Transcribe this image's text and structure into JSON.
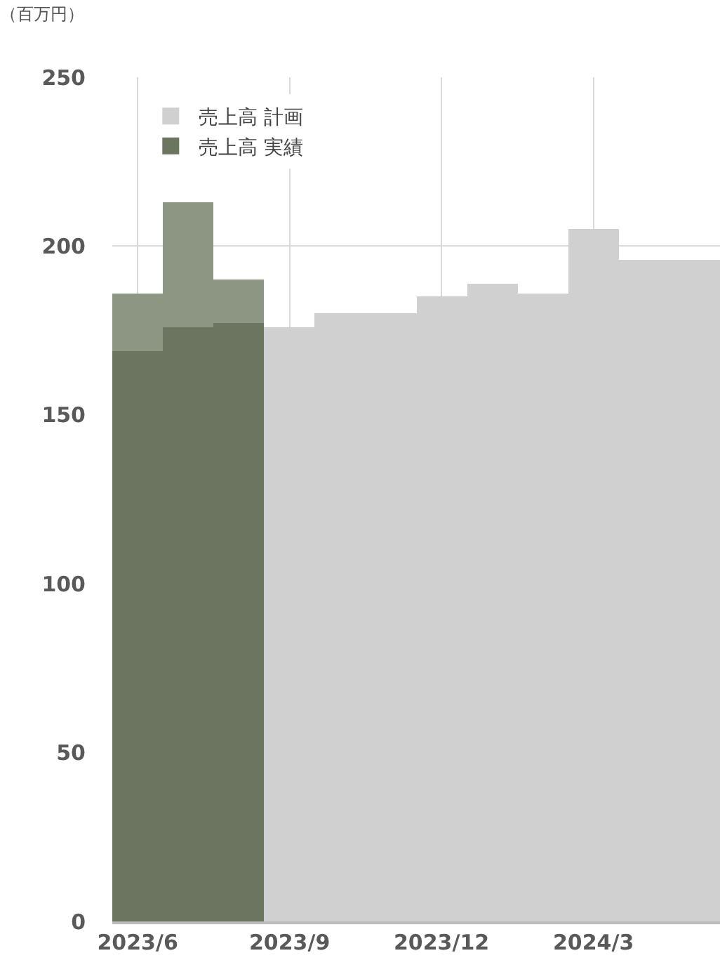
{
  "chart_data": {
    "type": "bar",
    "ylabel": "（百万円）",
    "categories": [
      "2023/6",
      null,
      null,
      "2023/9",
      null,
      null,
      "2023/12",
      null,
      null,
      "2024/3",
      null,
      null
    ],
    "series": [
      {
        "name": "売上高 計画",
        "color": "#d0d0d0",
        "colors": [
          "#8c9683",
          "#8c9683",
          "#8c9683",
          "#d0d0d0",
          "#d0d0d0",
          "#d0d0d0",
          "#d0d0d0",
          "#d0d0d0",
          "#d0d0d0",
          "#d0d0d0",
          "#d0d0d0",
          "#d0d0d0"
        ],
        "values": [
          186,
          213,
          190,
          176,
          180,
          180,
          185,
          189,
          186,
          205,
          196,
          196
        ]
      },
      {
        "name": "売上高 実績",
        "color": "#6b7560",
        "values": [
          169,
          176,
          177,
          null,
          null,
          null,
          null,
          null,
          null,
          null,
          null,
          null
        ]
      }
    ],
    "ylim": [
      0,
      250
    ],
    "yticks": [
      0,
      50,
      100,
      150,
      200,
      250
    ],
    "grid": true,
    "legend": "top left"
  }
}
